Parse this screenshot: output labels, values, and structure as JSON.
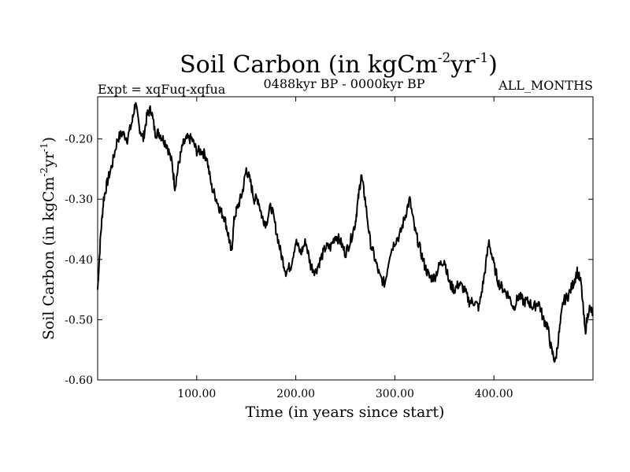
{
  "chart_data": {
    "type": "line",
    "title": "Soil Carbon (in kgCm",
    "title_unit_sup1": "-2",
    "title_unit_mid": "yr",
    "title_unit_sup2": "-1",
    "title_close": ")",
    "subtitle_left": "Expt = xqFuq-xqfua",
    "subtitle_center": "0488kyr BP - 0000kyr BP",
    "subtitle_right": "ALL_MONTHS",
    "xlabel": "Time (in years since start)",
    "ylabel": "Soil Carbon (in kgCm",
    "ylabel_sup1": "-2",
    "ylabel_mid": "yr",
    "ylabel_sup2": "-1",
    "ylabel_close": ")",
    "xlim": [
      0,
      500
    ],
    "ylim": [
      -0.6,
      -0.13
    ],
    "x_ticks": [
      100,
      200,
      300,
      400
    ],
    "x_tick_labels": [
      "100.00",
      "200.00",
      "300.00",
      "400.00"
    ],
    "y_ticks": [
      -0.2,
      -0.3,
      -0.4,
      -0.5,
      -0.6
    ],
    "y_tick_labels": [
      "-0.20",
      "-0.30",
      "-0.40",
      "-0.50",
      "-0.60"
    ],
    "line_color": "#000000",
    "series": [
      {
        "name": "Soil Carbon",
        "x": [
          0,
          3,
          6,
          10,
          15,
          20,
          25,
          30,
          35,
          38,
          42,
          46,
          50,
          54,
          58,
          62,
          66,
          70,
          75,
          78,
          82,
          86,
          90,
          95,
          100,
          105,
          110,
          115,
          120,
          124,
          128,
          132,
          135,
          138,
          142,
          146,
          150,
          154,
          158,
          162,
          166,
          170,
          175,
          180,
          185,
          190,
          195,
          200,
          205,
          210,
          215,
          220,
          225,
          230,
          235,
          240,
          245,
          250,
          255,
          260,
          263,
          266,
          270,
          275,
          280,
          285,
          290,
          295,
          300,
          305,
          310,
          315,
          320,
          325,
          330,
          335,
          340,
          345,
          350,
          355,
          360,
          365,
          370,
          375,
          380,
          385,
          390,
          395,
          400,
          405,
          410,
          415,
          420,
          425,
          430,
          435,
          440,
          445,
          450,
          454,
          458,
          462,
          466,
          470,
          475,
          480,
          484,
          488,
          492,
          496,
          500
        ],
        "y": [
          -0.45,
          -0.36,
          -0.3,
          -0.27,
          -0.24,
          -0.2,
          -0.19,
          -0.2,
          -0.17,
          -0.14,
          -0.18,
          -0.2,
          -0.16,
          -0.15,
          -0.19,
          -0.19,
          -0.2,
          -0.21,
          -0.24,
          -0.28,
          -0.24,
          -0.21,
          -0.2,
          -0.2,
          -0.22,
          -0.22,
          -0.23,
          -0.28,
          -0.3,
          -0.32,
          -0.33,
          -0.36,
          -0.39,
          -0.33,
          -0.31,
          -0.29,
          -0.25,
          -0.27,
          -0.3,
          -0.3,
          -0.33,
          -0.34,
          -0.31,
          -0.35,
          -0.39,
          -0.42,
          -0.41,
          -0.37,
          -0.39,
          -0.37,
          -0.41,
          -0.42,
          -0.4,
          -0.38,
          -0.38,
          -0.36,
          -0.37,
          -0.39,
          -0.37,
          -0.34,
          -0.3,
          -0.26,
          -0.3,
          -0.37,
          -0.4,
          -0.43,
          -0.44,
          -0.39,
          -0.37,
          -0.36,
          -0.33,
          -0.3,
          -0.35,
          -0.38,
          -0.41,
          -0.43,
          -0.43,
          -0.41,
          -0.4,
          -0.44,
          -0.45,
          -0.44,
          -0.45,
          -0.47,
          -0.47,
          -0.48,
          -0.43,
          -0.37,
          -0.41,
          -0.44,
          -0.45,
          -0.46,
          -0.48,
          -0.46,
          -0.47,
          -0.47,
          -0.48,
          -0.47,
          -0.5,
          -0.51,
          -0.55,
          -0.57,
          -0.52,
          -0.47,
          -0.46,
          -0.44,
          -0.42,
          -0.44,
          -0.52,
          -0.48,
          -0.49
        ]
      }
    ]
  }
}
